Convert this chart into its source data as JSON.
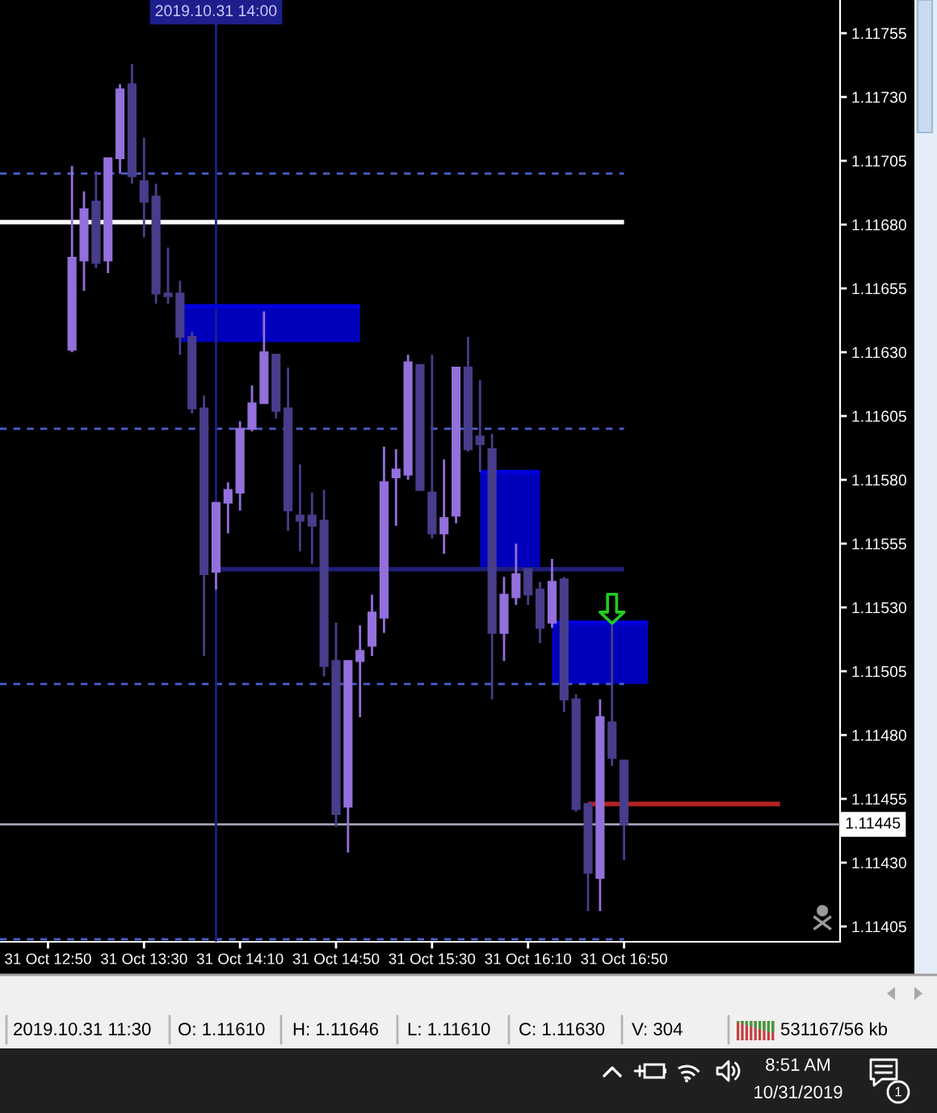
{
  "chart_data": {
    "type": "candlestick",
    "x": [
      "2019-10-31T13:00",
      "2019-10-31T13:05",
      "2019-10-31T13:10",
      "2019-10-31T13:15",
      "2019-10-31T13:20",
      "2019-10-31T13:25",
      "2019-10-31T13:30",
      "2019-10-31T13:35",
      "2019-10-31T13:40",
      "2019-10-31T13:45",
      "2019-10-31T13:50",
      "2019-10-31T13:55",
      "2019-10-31T14:00",
      "2019-10-31T14:05",
      "2019-10-31T14:10",
      "2019-10-31T14:15",
      "2019-10-31T14:20",
      "2019-10-31T14:25",
      "2019-10-31T14:30",
      "2019-10-31T14:35",
      "2019-10-31T14:40",
      "2019-10-31T14:45",
      "2019-10-31T14:50",
      "2019-10-31T14:55",
      "2019-10-31T15:00",
      "2019-10-31T15:05",
      "2019-10-31T15:10",
      "2019-10-31T15:15",
      "2019-10-31T15:20",
      "2019-10-31T15:25",
      "2019-10-31T15:30",
      "2019-10-31T15:35",
      "2019-10-31T15:40",
      "2019-10-31T15:45",
      "2019-10-31T15:50",
      "2019-10-31T15:55",
      "2019-10-31T16:00",
      "2019-10-31T16:05",
      "2019-10-31T16:10",
      "2019-10-31T16:15",
      "2019-10-31T16:20",
      "2019-10-31T16:25",
      "2019-10-31T16:30",
      "2019-10-31T16:35",
      "2019-10-31T16:40",
      "2019-10-31T16:45",
      "2019-10-31T16:50"
    ],
    "ohlc": [
      [
        1.11631,
        1.11703,
        1.1163,
        1.11667
      ],
      [
        1.11666,
        1.11693,
        1.11654,
        1.11686
      ],
      [
        1.11689,
        1.11701,
        1.11663,
        1.11665
      ],
      [
        1.11666,
        1.11706,
        1.11661,
        1.11706
      ],
      [
        1.11706,
        1.11735,
        1.117,
        1.11733
      ],
      [
        1.11735,
        1.11743,
        1.11696,
        1.11699
      ],
      [
        1.11697,
        1.11714,
        1.11675,
        1.11689
      ],
      [
        1.11691,
        1.11696,
        1.11649,
        1.11653
      ],
      [
        1.11653,
        1.11671,
        1.11649,
        1.11652
      ],
      [
        1.11653,
        1.11658,
        1.11629,
        1.11636
      ],
      [
        1.11636,
        1.11638,
        1.11606,
        1.11608
      ],
      [
        1.11608,
        1.11613,
        1.11511,
        1.11543
      ],
      [
        1.11544,
        1.11571,
        1.11537,
        1.11571
      ],
      [
        1.11571,
        1.11579,
        1.11559,
        1.11576
      ],
      [
        1.11575,
        1.11603,
        1.11568,
        1.116
      ],
      [
        1.116,
        1.11617,
        1.11599,
        1.1161
      ],
      [
        1.1161,
        1.11646,
        1.1161,
        1.1163
      ],
      [
        1.11629,
        1.11629,
        1.11604,
        1.11607
      ],
      [
        1.11608,
        1.11624,
        1.1156,
        1.11568
      ],
      [
        1.11566,
        1.11586,
        1.11552,
        1.11564
      ],
      [
        1.11566,
        1.11575,
        1.11547,
        1.11562
      ],
      [
        1.11564,
        1.11576,
        1.11503,
        1.11507
      ],
      [
        1.11509,
        1.11524,
        1.11444,
        1.11449
      ],
      [
        1.11452,
        1.11509,
        1.11434,
        1.11509
      ],
      [
        1.11509,
        1.11523,
        1.11487,
        1.11513
      ],
      [
        1.11515,
        1.11535,
        1.11511,
        1.11528
      ],
      [
        1.11526,
        1.11593,
        1.1152,
        1.11579
      ],
      [
        1.11581,
        1.11592,
        1.11562,
        1.11584
      ],
      [
        1.11582,
        1.11629,
        1.1158,
        1.11626
      ],
      [
        1.11625,
        1.11625,
        1.11576,
        1.11576
      ],
      [
        1.11575,
        1.11629,
        1.11557,
        1.11559
      ],
      [
        1.11559,
        1.11588,
        1.11551,
        1.11565
      ],
      [
        1.11566,
        1.11624,
        1.11563,
        1.11624
      ],
      [
        1.11624,
        1.11636,
        1.11591,
        1.11592
      ],
      [
        1.11597,
        1.11619,
        1.11583,
        1.11594
      ],
      [
        1.11592,
        1.11598,
        1.11494,
        1.1152
      ],
      [
        1.1152,
        1.11542,
        1.11509,
        1.11535
      ],
      [
        1.11534,
        1.11555,
        1.11531,
        1.11543
      ],
      [
        1.11545,
        1.11545,
        1.11531,
        1.11535
      ],
      [
        1.11537,
        1.1154,
        1.11516,
        1.11522
      ],
      [
        1.11524,
        1.11549,
        1.11522,
        1.1154
      ],
      [
        1.11541,
        1.11542,
        1.11489,
        1.11494
      ],
      [
        1.11494,
        1.11496,
        1.1145,
        1.11451
      ],
      [
        1.11453,
        1.11453,
        1.11411,
        1.11426
      ],
      [
        1.11424,
        1.11494,
        1.11411,
        1.11487
      ],
      [
        1.11485,
        1.11523,
        1.11468,
        1.11471
      ],
      [
        1.1147,
        1.1147,
        1.11431,
        1.11445
      ]
    ],
    "colors": [
      "#9370db",
      "#9370db",
      "#483d8b",
      "#9370db",
      "#9370db",
      "#483d8b",
      "#483d8b",
      "#483d8b",
      "#483d8b",
      "#483d8b",
      "#483d8b",
      "#483d8b",
      "#9370db",
      "#9370db",
      "#9370db",
      "#9370db",
      "#9370db",
      "#483d8b",
      "#483d8b",
      "#483d8b",
      "#483d8b",
      "#483d8b",
      "#483d8b",
      "#9370db",
      "#9370db",
      "#9370db",
      "#9370db",
      "#9370db",
      "#9370db",
      "#483d8b",
      "#483d8b",
      "#9370db",
      "#9370db",
      "#483d8b",
      "#483d8b",
      "#483d8b",
      "#9370db",
      "#9370db",
      "#483d8b",
      "#483d8b",
      "#9370db",
      "#483d8b",
      "#483d8b",
      "#483d8b",
      "#9370db",
      "#483d8b",
      "#483d8b"
    ],
    "series": [
      {
        "type": "line",
        "color": "#0000dd",
        "x": [
          "2019-10-31T13:45",
          "2019-10-31T15:00"
        ],
        "values": [
          1.11648,
          1.11648
        ],
        "upper": [
          1.11648,
          1.11648
        ],
        "lower": [
          1.11634,
          1.11634
        ]
      },
      {
        "type": "line",
        "color": "#0000dd",
        "x": [
          "2019-10-31T15:50",
          "2019-10-31T16:15"
        ],
        "values": [
          1.11583,
          1.11583
        ],
        "upper": [
          1.11583,
          1.11583
        ],
        "lower": [
          1.11545,
          1.11545
        ]
      },
      {
        "type": "line",
        "color": "#0000dd",
        "x": [
          "2019-10-31T16:20",
          "2019-10-31T17:00"
        ],
        "values": [
          1.11524,
          1.11524
        ],
        "upper": [
          1.11524,
          1.11524
        ],
        "lower": [
          1.115,
          1.115
        ]
      },
      {
        "type": "line",
        "color": "#1e1e78",
        "x": [
          "2019-10-31T14:00",
          "2019-10-31T16:50"
        ],
        "values": [
          1.11545,
          1.11545
        ]
      },
      {
        "type": "line",
        "color": "#b22222",
        "x": [
          "2019-10-31T16:35",
          "2019-10-31T17:55"
        ],
        "values": [
          1.11453,
          1.11453
        ]
      }
    ],
    "ref_lines": [
      {
        "axis": "y",
        "value": 1.117,
        "color": "#4a5fd0",
        "line_style": "dashed"
      },
      {
        "axis": "y",
        "value": 1.11681,
        "color": "#ffffff",
        "line_style": "solid"
      },
      {
        "axis": "y",
        "value": 1.116,
        "color": "#4a5fd0",
        "line_style": "dashed"
      },
      {
        "axis": "y",
        "value": 1.115,
        "color": "#4a5fd0",
        "line_style": "dashed"
      },
      {
        "axis": "y",
        "value": 1.114,
        "color": "#4a5fd0",
        "line_style": "dashed"
      },
      {
        "axis": "y",
        "value": 1.11445,
        "label": "1.11445",
        "color": "#a0a0b4",
        "line_style": "solid"
      },
      {
        "axis": "x",
        "value": "2019-10-31T14:00",
        "label": "2019.10.31 14:00",
        "color": "#1e1e8c",
        "line_style": "solid"
      }
    ],
    "xlim": [
      "2019-10-31T12:30",
      "2019-10-31T18:20"
    ],
    "xticks": [
      {
        "value": "2019-10-31T12:50",
        "label": "31 Oct 12:50"
      },
      {
        "value": "2019-10-31T13:30",
        "label": "31 Oct 13:30"
      },
      {
        "value": "2019-10-31T14:10",
        "label": "31 Oct 14:10"
      },
      {
        "value": "2019-10-31T14:50",
        "label": "31 Oct 14:50"
      },
      {
        "value": "2019-10-31T15:30",
        "label": "31 Oct 15:30"
      },
      {
        "value": "2019-10-31T16:10",
        "label": "31 Oct 16:10"
      },
      {
        "value": "2019-10-31T16:50",
        "label": "31 Oct 16:50"
      }
    ],
    "ylim": [
      1.11399,
      1.11768
    ],
    "yticks": [
      1.11405,
      {
        "value": 1.1143,
        "label": "1.11430"
      },
      1.11455,
      {
        "value": 1.1148,
        "label": "1.11480"
      },
      1.11505,
      {
        "value": 1.1153,
        "label": "1.11530"
      },
      1.11555,
      {
        "value": 1.1158,
        "label": "1.11580"
      },
      1.11605,
      {
        "value": 1.1163,
        "label": "1.11630"
      },
      1.11655,
      {
        "value": 1.1168,
        "label": "1.11680"
      },
      1.11705,
      {
        "value": 1.1173,
        "label": "1.11730"
      },
      1.11755
    ],
    "annotations": [
      "2019.10.31 11:30",
      "O: 1.11610",
      "H: 1.11646",
      "L: 1.11610",
      "C: 1.11630",
      "V: 304",
      "531167/56 kb",
      "8:51 AM",
      "10/31/2019",
      "1"
    ]
  }
}
